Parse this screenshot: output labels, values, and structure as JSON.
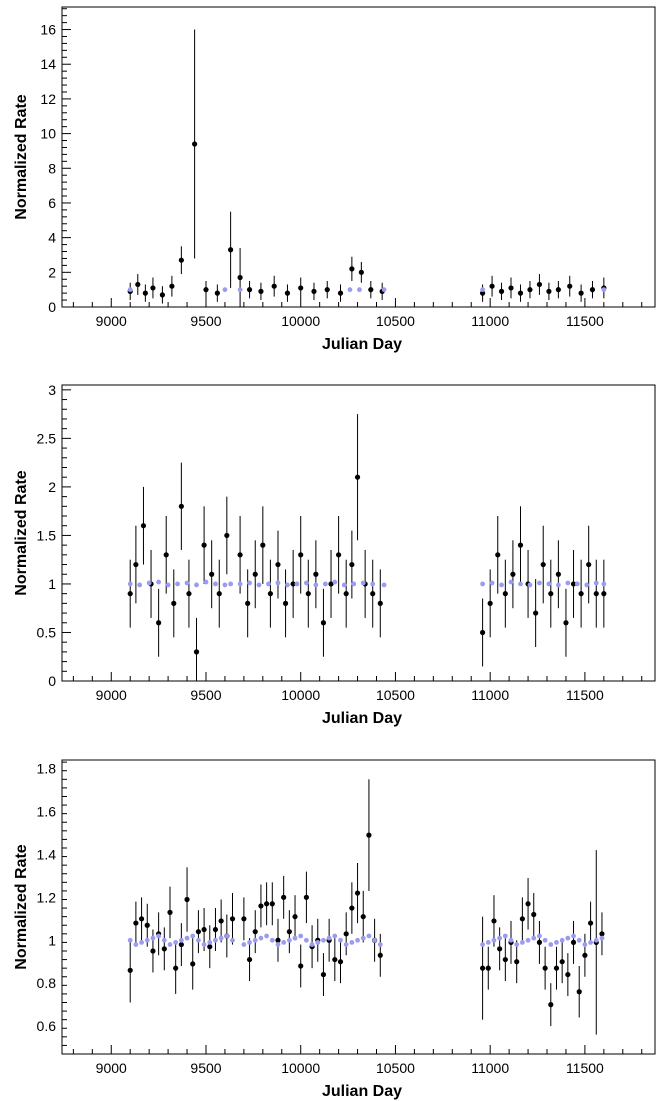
{
  "figure": {
    "background": "#ffffff",
    "point_color": "#000000",
    "model_color": "#9b9bf0"
  },
  "chart_data": [
    {
      "type": "scatter",
      "title": "",
      "xlabel": "Julian Day",
      "ylabel": "Normalized Rate",
      "xlim": [
        8740,
        11870
      ],
      "ylim": [
        0,
        17.3
      ],
      "xticks": [
        9000,
        9500,
        10000,
        10500,
        11000,
        11500
      ],
      "yticks": [
        0,
        2,
        4,
        6,
        8,
        10,
        12,
        14,
        16
      ],
      "ytick_labels": [
        "0",
        "2",
        "4",
        "6",
        "8",
        "10",
        "12",
        "14",
        "16"
      ],
      "grid": false,
      "legend": "none",
      "error_bars": true,
      "series": [
        {
          "role": "measured",
          "marker": "filled-circle",
          "x": [
            9100,
            9140,
            9180,
            9220,
            9270,
            9320,
            9370,
            9440,
            9500,
            9560,
            9630,
            9680,
            9730,
            9790,
            9860,
            9930,
            10000,
            10070,
            10140,
            10210,
            10270,
            10320,
            10370,
            10430,
            10960,
            11010,
            11060,
            11110,
            11160,
            11210,
            11260,
            11310,
            11360,
            11420,
            11480,
            11540,
            11600
          ],
          "y": [
            0.9,
            1.3,
            0.8,
            1.1,
            0.7,
            1.2,
            2.7,
            9.4,
            1.0,
            0.8,
            3.3,
            1.7,
            1.0,
            0.9,
            1.2,
            0.8,
            1.1,
            0.9,
            1.0,
            0.8,
            2.2,
            2.0,
            1.0,
            0.9,
            0.8,
            1.2,
            0.9,
            1.1,
            0.8,
            1.0,
            1.3,
            0.9,
            1.0,
            1.2,
            0.8,
            1.0,
            1.1
          ],
          "err": [
            0.5,
            0.6,
            0.5,
            0.6,
            0.5,
            0.6,
            0.8,
            6.6,
            0.5,
            0.5,
            2.2,
            1.7,
            0.5,
            0.5,
            0.6,
            0.5,
            0.6,
            0.5,
            0.5,
            0.5,
            0.7,
            0.6,
            0.5,
            0.5,
            0.5,
            0.6,
            0.5,
            0.6,
            0.5,
            0.5,
            0.6,
            0.5,
            0.5,
            0.6,
            0.5,
            0.5,
            0.6
          ]
        },
        {
          "role": "model",
          "marker": "small-circle",
          "x": [
            9100,
            9600,
            9680,
            10260,
            10310,
            10440,
            10960,
            11600
          ],
          "y": [
            1.0,
            1.0,
            1.0,
            1.0,
            1.0,
            1.0,
            1.0,
            1.0
          ]
        }
      ]
    },
    {
      "type": "scatter",
      "title": "",
      "xlabel": "Julian Day",
      "ylabel": "Normalized Rate",
      "xlim": [
        8740,
        11870
      ],
      "ylim": [
        0,
        3.05
      ],
      "xticks": [
        9000,
        9500,
        10000,
        10500,
        11000,
        11500
      ],
      "yticks": [
        0,
        0.5,
        1,
        1.5,
        2,
        2.5,
        3
      ],
      "ytick_labels": [
        "0",
        "0.5",
        "1",
        "1.5",
        "2",
        "2.5",
        "3"
      ],
      "grid": false,
      "legend": "none",
      "error_bars": true,
      "series": [
        {
          "role": "measured",
          "marker": "filled-circle",
          "x": [
            9100,
            9130,
            9170,
            9210,
            9250,
            9290,
            9330,
            9370,
            9410,
            9450,
            9490,
            9530,
            9570,
            9610,
            9680,
            9720,
            9760,
            9800,
            9840,
            9880,
            9920,
            9960,
            10000,
            10040,
            10080,
            10120,
            10160,
            10200,
            10240,
            10270,
            10300,
            10340,
            10380,
            10420,
            10960,
            11000,
            11040,
            11080,
            11120,
            11160,
            11200,
            11240,
            11280,
            11320,
            11360,
            11400,
            11440,
            11480,
            11520,
            11560,
            11600
          ],
          "y": [
            0.9,
            1.2,
            1.6,
            1.0,
            0.6,
            1.3,
            0.8,
            1.8,
            0.9,
            0.3,
            1.4,
            1.1,
            0.9,
            1.5,
            1.3,
            0.8,
            1.1,
            1.4,
            0.9,
            1.2,
            0.8,
            1.0,
            1.3,
            0.9,
            1.1,
            0.6,
            1.0,
            1.3,
            0.9,
            1.2,
            2.1,
            1.0,
            0.9,
            0.8,
            0.5,
            0.8,
            1.3,
            0.9,
            1.1,
            1.4,
            1.0,
            0.7,
            1.2,
            0.9,
            1.1,
            0.6,
            1.0,
            0.9,
            1.2,
            0.9,
            0.9
          ],
          "err": [
            0.35,
            0.4,
            0.4,
            0.35,
            0.35,
            0.4,
            0.35,
            0.45,
            0.35,
            0.35,
            0.4,
            0.35,
            0.35,
            0.4,
            0.4,
            0.35,
            0.35,
            0.4,
            0.35,
            0.35,
            0.35,
            0.35,
            0.4,
            0.35,
            0.35,
            0.35,
            0.35,
            0.4,
            0.35,
            0.35,
            0.65,
            0.35,
            0.35,
            0.35,
            0.35,
            0.35,
            0.4,
            0.35,
            0.35,
            0.4,
            0.35,
            0.35,
            0.4,
            0.35,
            0.35,
            0.35,
            0.35,
            0.35,
            0.4,
            0.35,
            0.35
          ]
        },
        {
          "role": "model",
          "marker": "small-circle",
          "x": [
            9100,
            9150,
            9200,
            9250,
            9300,
            9350,
            9400,
            9450,
            9500,
            9550,
            9600,
            9630,
            9680,
            9730,
            9780,
            9830,
            9880,
            9930,
            9980,
            10030,
            10080,
            10130,
            10180,
            10230,
            10280,
            10330,
            10380,
            10440,
            10960,
            11010,
            11060,
            11110,
            11160,
            11210,
            11260,
            11310,
            11360,
            11410,
            11460,
            11510,
            11560,
            11600
          ],
          "y": [
            1.0,
            0.99,
            1.01,
            1.02,
            0.99,
            1.0,
            1.01,
            0.99,
            1.02,
            1.0,
            0.99,
            1.0,
            1.0,
            1.01,
            0.99,
            1.0,
            1.01,
            0.99,
            1.0,
            1.01,
            0.99,
            1.0,
            1.02,
            0.99,
            1.0,
            1.01,
            1.0,
            0.99,
            1.0,
            1.01,
            0.99,
            1.02,
            1.0,
            0.99,
            1.01,
            1.0,
            0.99,
            1.01,
            1.0,
            0.99,
            1.01,
            1.0
          ]
        }
      ]
    },
    {
      "type": "scatter",
      "title": "",
      "xlabel": "Julian Day",
      "ylabel": "Normalized Rate",
      "xlim": [
        8740,
        11870
      ],
      "ylim": [
        0.47,
        1.84
      ],
      "xticks": [
        9000,
        9500,
        10000,
        10500,
        11000,
        11500
      ],
      "yticks": [
        0.6,
        0.8,
        1.0,
        1.2,
        1.4,
        1.6,
        1.8
      ],
      "ytick_labels": [
        "0.6",
        "0.8",
        "1",
        "1.2",
        "1.4",
        "1.6",
        "1.8"
      ],
      "grid": false,
      "legend": "none",
      "error_bars": true,
      "series": [
        {
          "role": "measured",
          "marker": "filled-circle",
          "x": [
            9100,
            9130,
            9160,
            9190,
            9220,
            9250,
            9280,
            9310,
            9340,
            9370,
            9400,
            9430,
            9460,
            9490,
            9520,
            9550,
            9580,
            9610,
            9640,
            9700,
            9730,
            9760,
            9790,
            9820,
            9850,
            9880,
            9910,
            9940,
            9970,
            10000,
            10030,
            10060,
            10090,
            10120,
            10150,
            10180,
            10210,
            10240,
            10270,
            10300,
            10330,
            10360,
            10390,
            10420,
            10960,
            10990,
            11020,
            11050,
            11080,
            11110,
            11140,
            11170,
            11200,
            11230,
            11260,
            11290,
            11320,
            11350,
            11380,
            11410,
            11440,
            11470,
            11500,
            11530,
            11560,
            11590
          ],
          "y": [
            0.86,
            1.08,
            1.1,
            1.07,
            0.95,
            1.03,
            0.96,
            1.13,
            0.87,
            0.98,
            1.19,
            0.89,
            1.04,
            1.05,
            0.97,
            1.05,
            1.09,
            1.02,
            1.1,
            1.1,
            0.91,
            1.04,
            1.16,
            1.17,
            1.17,
            1.0,
            1.2,
            1.04,
            1.11,
            0.88,
            1.2,
            0.97,
            1.0,
            0.84,
            1.0,
            0.91,
            0.9,
            1.03,
            1.15,
            1.22,
            1.11,
            1.49,
            1.0,
            0.93,
            0.87,
            0.87,
            1.09,
            0.96,
            0.91,
            0.99,
            0.9,
            1.1,
            1.17,
            1.12,
            0.99,
            0.87,
            0.7,
            0.87,
            0.9,
            0.84,
            0.99,
            0.76,
            0.93,
            1.08,
            0.99,
            1.03
          ],
          "err": [
            0.15,
            0.1,
            0.1,
            0.1,
            0.1,
            0.1,
            0.1,
            0.12,
            0.12,
            0.1,
            0.15,
            0.12,
            0.1,
            0.1,
            0.1,
            0.1,
            0.1,
            0.1,
            0.12,
            0.1,
            0.1,
            0.1,
            0.1,
            0.1,
            0.1,
            0.1,
            0.1,
            0.1,
            0.1,
            0.1,
            0.12,
            0.1,
            0.1,
            0.1,
            0.1,
            0.1,
            0.1,
            0.1,
            0.12,
            0.14,
            0.12,
            0.26,
            0.1,
            0.1,
            0.24,
            0.1,
            0.12,
            0.1,
            0.1,
            0.1,
            0.1,
            0.1,
            0.12,
            0.1,
            0.1,
            0.1,
            0.1,
            0.1,
            0.1,
            0.1,
            0.1,
            0.12,
            0.1,
            0.1,
            0.43,
            0.1
          ]
        },
        {
          "role": "model",
          "marker": "small-circle",
          "x": [
            9100,
            9130,
            9160,
            9190,
            9220,
            9250,
            9280,
            9310,
            9340,
            9370,
            9400,
            9430,
            9460,
            9490,
            9520,
            9550,
            9580,
            9610,
            9640,
            9700,
            9730,
            9760,
            9790,
            9820,
            9850,
            9880,
            9910,
            9940,
            9970,
            10000,
            10030,
            10060,
            10090,
            10120,
            10150,
            10180,
            10210,
            10240,
            10270,
            10300,
            10330,
            10360,
            10390,
            10420,
            10960,
            10990,
            11020,
            11050,
            11080,
            11110,
            11140,
            11170,
            11200,
            11230,
            11260,
            11290,
            11320,
            11350,
            11380,
            11410,
            11440,
            11470,
            11500,
            11530,
            11560,
            11590
          ],
          "y": [
            1.0,
            0.98,
            0.99,
            1.0,
            1.01,
            1.02,
            1.0,
            0.98,
            0.99,
            1.0,
            1.01,
            1.02,
            1.0,
            0.98,
            0.99,
            1.0,
            1.01,
            1.02,
            1.0,
            0.98,
            0.99,
            1.0,
            1.01,
            1.02,
            1.0,
            0.98,
            0.99,
            1.0,
            1.01,
            1.02,
            1.0,
            0.98,
            0.99,
            1.0,
            1.01,
            1.02,
            1.0,
            0.98,
            0.99,
            1.0,
            1.01,
            1.02,
            1.0,
            0.98,
            0.98,
            0.99,
            1.0,
            1.01,
            1.02,
            1.0,
            0.98,
            0.99,
            1.0,
            1.01,
            1.02,
            1.0,
            0.98,
            0.99,
            1.0,
            1.01,
            1.02,
            1.0,
            0.98,
            0.99,
            1.0,
            1.01
          ]
        }
      ]
    }
  ]
}
